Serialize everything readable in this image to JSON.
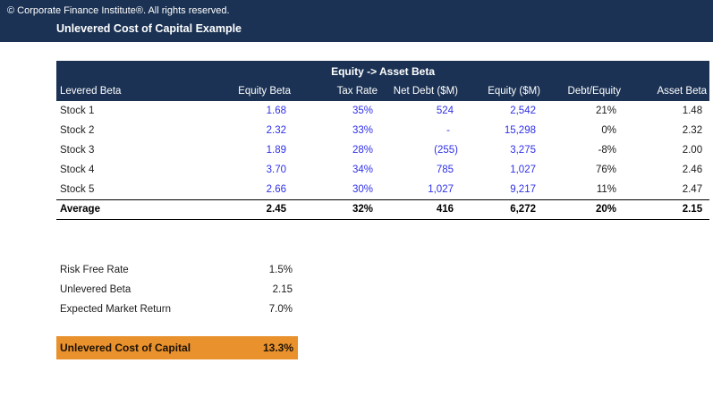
{
  "topbar": {
    "copyright": "© Corporate Finance Institute®. All rights reserved.",
    "title": "Unlevered Cost of Capital Example"
  },
  "table": {
    "title": "Equity -> Asset Beta",
    "columns": [
      "Levered Beta",
      "Equity Beta",
      "Tax Rate",
      "Net Debt ($M)",
      "Equity ($M)",
      "Debt/Equity",
      "Asset Beta"
    ],
    "rows": [
      [
        "Stock 1",
        "1.68",
        "35%",
        "524",
        "2,542",
        "21%",
        "1.48"
      ],
      [
        "Stock 2",
        "2.32",
        "33%",
        "-",
        "15,298",
        "0%",
        "2.32"
      ],
      [
        "Stock 3",
        "1.89",
        "28%",
        "(255)",
        "3,275",
        "-8%",
        "2.00"
      ],
      [
        "Stock 4",
        "3.70",
        "34%",
        "785",
        "1,027",
        "76%",
        "2.46"
      ],
      [
        "Stock 5",
        "2.66",
        "30%",
        "1,027",
        "9,217",
        "11%",
        "2.47"
      ]
    ],
    "average": [
      "Average",
      "2.45",
      "32%",
      "416",
      "6,272",
      "20%",
      "2.15"
    ]
  },
  "assumptions": [
    {
      "label": "Risk Free Rate",
      "value": "1.5%"
    },
    {
      "label": "Unlevered Beta",
      "value": "2.15"
    },
    {
      "label": "Expected Market Return",
      "value": "7.0%"
    }
  ],
  "result": {
    "label": "Unlevered Cost of Capital",
    "value": "13.3%"
  },
  "colors": {
    "navy": "#1B3254",
    "orange": "#E8912D",
    "input_blue": "#3030E8"
  }
}
